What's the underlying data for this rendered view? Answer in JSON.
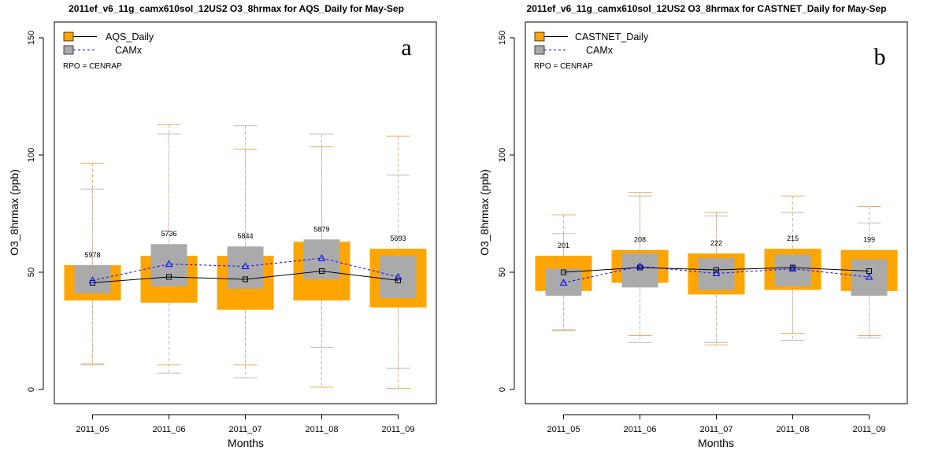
{
  "colors": {
    "obs_box": "#FFA500",
    "mod_box": "#AAAAAA",
    "obs_whisker": "#E8B070",
    "mod_whisker": "#BBBBBB",
    "obs_line": "#000000",
    "mod_line": "#0000FF"
  },
  "chart_data": [
    {
      "type": "box",
      "title": "2011ef_v6_11g_camx610sol_12US2 O3_8hrmax for AQS_Daily for May-Sep",
      "xlabel": "Months",
      "ylabel": "O3_8hrmax (ppb)",
      "ylim": [
        0,
        150
      ],
      "yticks": [
        0,
        50,
        100,
        150
      ],
      "categories": [
        "2011_05",
        "2011_06",
        "2011_07",
        "2011_08",
        "2011_09"
      ],
      "counts": [
        "5978",
        "5736",
        "5844",
        "5879",
        "5693"
      ],
      "legend": {
        "observed": "AQS_Daily",
        "model": "CAMx",
        "placement": "top-left"
      },
      "note": "RPO = CENRAP",
      "panel_label": "a",
      "observed": {
        "name": "AQS_Daily",
        "q1": [
          38,
          37,
          34,
          38,
          35
        ],
        "q3": [
          53,
          57,
          57,
          63,
          60
        ],
        "median": [
          45.5,
          48,
          47,
          50.5,
          46.5
        ],
        "whisker_low": [
          10.5,
          10.5,
          10.5,
          1,
          0.5
        ],
        "whisker_high": [
          96.5,
          113,
          102.5,
          103.5,
          108
        ]
      },
      "model": {
        "name": "CAMx",
        "q1": [
          41,
          44,
          43,
          47,
          39
        ],
        "q3": [
          53,
          62,
          61,
          64,
          57
        ],
        "median": [
          46.5,
          53.5,
          52.5,
          56,
          48
        ],
        "whisker_low": [
          11,
          7,
          5,
          18,
          9
        ],
        "whisker_high": [
          85.5,
          109,
          112.5,
          109,
          91.5
        ]
      }
    },
    {
      "type": "box",
      "title": "2011ef_v6_11g_camx610sol_12US2 O3_8hrmax for CASTNET_Daily for May-Sep",
      "xlabel": "Months",
      "ylabel": "O3_8hrmax (ppb)",
      "ylim": [
        0,
        150
      ],
      "yticks": [
        0,
        50,
        100,
        150
      ],
      "categories": [
        "2011_05",
        "2011_06",
        "2011_07",
        "2011_08",
        "2011_09"
      ],
      "counts": [
        "201",
        "208",
        "222",
        "215",
        "199"
      ],
      "legend": {
        "observed": "CASTNET_Daily",
        "model": "CAMx",
        "placement": "top-left"
      },
      "note": "RPO = CENRAP",
      "panel_label": "b",
      "observed": {
        "name": "CASTNET_Daily",
        "q1": [
          42,
          45.5,
          40.5,
          42.5,
          42
        ],
        "q3": [
          57,
          59.5,
          58,
          60,
          59.5
        ],
        "median": [
          50,
          52,
          51,
          52,
          50.5
        ],
        "whisker_low": [
          25,
          23,
          19,
          24,
          23
        ],
        "whisker_high": [
          74.5,
          84,
          75.5,
          82.5,
          78
        ]
      },
      "model": {
        "name": "CAMx",
        "q1": [
          40,
          43.5,
          42.5,
          44,
          40
        ],
        "q3": [
          51.5,
          58,
          56,
          57.5,
          55.5
        ],
        "median": [
          45.5,
          52.5,
          49.5,
          51.5,
          48
        ],
        "whisker_low": [
          25.5,
          20,
          20,
          21,
          22
        ],
        "whisker_high": [
          66.5,
          82.5,
          74,
          75.5,
          71
        ]
      }
    }
  ]
}
